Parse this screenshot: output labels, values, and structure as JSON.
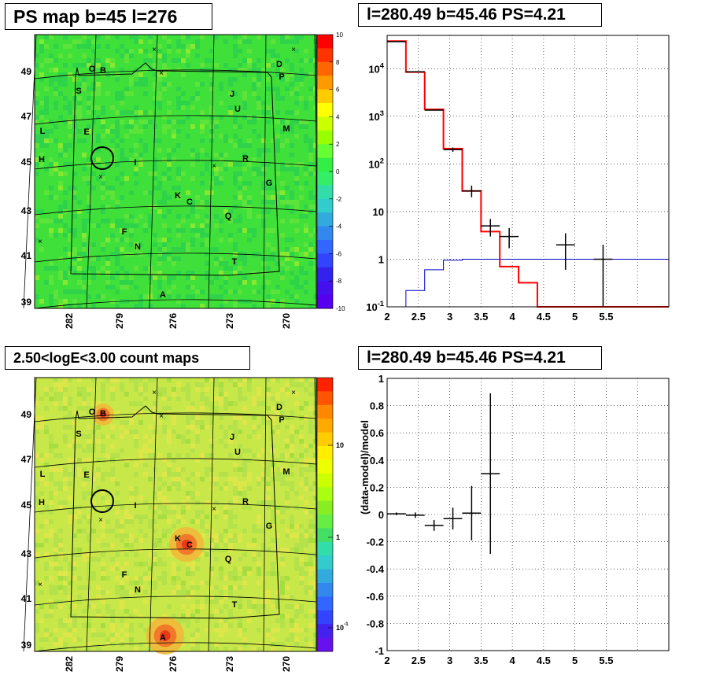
{
  "titles": {
    "ps_map": "PS map b=45 l=276",
    "spectrum": "l=280.49 b=45.46 PS=4.21",
    "count_map": "2.50<logE<3.00 count maps",
    "residual": "l=280.49 b=45.46 PS=4.21"
  },
  "colors": {
    "model_line": "#ff0000",
    "background_line": "#0000cc",
    "data": "#000000",
    "ps_map_bg": "#3fe03a",
    "count_map_bg": "#c8e84a"
  },
  "chart_data": [
    {
      "type": "heatmap",
      "title": "PS map b=45 l=276",
      "x_tick_labels": [
        "282",
        "279",
        "276",
        "273",
        "270"
      ],
      "y_tick_labels": [
        "49",
        "47",
        "45",
        "43",
        "41",
        "39"
      ],
      "colorbar": {
        "min": -10,
        "max": 10,
        "tick_labels": [
          "10",
          "8",
          "6",
          "4",
          "2",
          "0",
          "-2",
          "-4",
          "-6",
          "-8",
          "-10"
        ]
      },
      "source_labels": [
        "A",
        "B",
        "C",
        "D",
        "E",
        "F",
        "G",
        "H",
        "I",
        "J",
        "K",
        "L",
        "M",
        "N",
        "O",
        "P",
        "Q",
        "R",
        "S",
        "T",
        "U"
      ]
    },
    {
      "type": "line",
      "title": "l=280.49 b=45.46 PS=4.21",
      "x_tick_labels": [
        "2",
        "2.5",
        "3",
        "3.5",
        "4",
        "4.5",
        "5",
        "5.5"
      ],
      "xlim": [
        2,
        6.5
      ],
      "ylog": true,
      "ylim": [
        0.1,
        50000
      ],
      "y_tick_labels": [
        "10^4",
        "10^3",
        "10^2",
        "10",
        "1",
        "10^-1"
      ],
      "series": [
        {
          "role": "model",
          "bin_edges": [
            2.0,
            2.3,
            2.6,
            2.9,
            3.2,
            3.5,
            3.8,
            4.1,
            4.4,
            6.5
          ],
          "values": [
            38000,
            8500,
            1400,
            210,
            27,
            3.8,
            0.7,
            0.32,
            0.1
          ]
        },
        {
          "role": "background",
          "bin_edges": [
            2.0,
            2.3,
            2.6,
            2.9,
            3.2,
            3.5,
            3.8,
            4.1,
            4.4,
            6.5
          ],
          "values": [
            0.05,
            0.22,
            0.6,
            0.95,
            1.0,
            1.0,
            1.0,
            1.0,
            1.0
          ]
        },
        {
          "role": "data",
          "points": [
            {
              "x": 2.15,
              "xerr": 0.15,
              "y": 37000
            },
            {
              "x": 2.45,
              "xerr": 0.15,
              "y": 8600
            },
            {
              "x": 2.75,
              "xerr": 0.15,
              "y": 1350
            },
            {
              "x": 3.05,
              "xerr": 0.15,
              "y": 200,
              "ylo": 180,
              "yhi": 220
            },
            {
              "x": 3.35,
              "xerr": 0.15,
              "y": 27,
              "ylo": 20,
              "yhi": 35
            },
            {
              "x": 3.65,
              "xerr": 0.15,
              "y": 5,
              "ylo": 3,
              "yhi": 7
            },
            {
              "x": 3.95,
              "xerr": 0.15,
              "y": 3,
              "ylo": 1.7,
              "yhi": 4.5
            },
            {
              "x": 4.85,
              "xerr": 0.15,
              "y": 2,
              "ylo": 0.6,
              "yhi": 3.5
            },
            {
              "x": 5.45,
              "xerr": 0.15,
              "y": 1,
              "ylo": 0.1,
              "yhi": 2
            }
          ]
        }
      ]
    },
    {
      "type": "heatmap",
      "title": "2.50<logE<3.00 count maps",
      "x_tick_labels": [
        "282",
        "279",
        "276",
        "273",
        "270"
      ],
      "y_tick_labels": [
        "49",
        "47",
        "45",
        "43",
        "41",
        "39"
      ],
      "colorbar": {
        "log": true,
        "tick_labels": [
          "10",
          "1",
          "10^-1"
        ]
      },
      "source_labels": [
        "A",
        "B",
        "C",
        "D",
        "E",
        "F",
        "G",
        "H",
        "I",
        "J",
        "K",
        "L",
        "M",
        "N",
        "O",
        "P",
        "Q",
        "R",
        "S",
        "T",
        "U"
      ]
    },
    {
      "type": "scatter",
      "title": "l=280.49 b=45.46 PS=4.21",
      "ylabel": "(data-model)/model",
      "x_tick_labels": [
        "2",
        "2.5",
        "3",
        "3.5",
        "4",
        "4.5",
        "5",
        "5.5"
      ],
      "xlim": [
        2,
        6.5
      ],
      "ylim": [
        -1,
        1
      ],
      "y_tick_labels": [
        "1",
        "0.8",
        "0.6",
        "0.4",
        "0.2",
        "0",
        "-0.2",
        "-0.4",
        "-0.6",
        "-0.8",
        "-1"
      ],
      "points": [
        {
          "x": 2.15,
          "xerr": 0.15,
          "y": 0.005,
          "yerr": 0.01
        },
        {
          "x": 2.45,
          "xerr": 0.15,
          "y": -0.005,
          "yerr": 0.02
        },
        {
          "x": 2.75,
          "xerr": 0.15,
          "y": -0.08,
          "yerr": 0.04
        },
        {
          "x": 3.05,
          "xerr": 0.15,
          "y": -0.03,
          "yerr": 0.08
        },
        {
          "x": 3.35,
          "xerr": 0.15,
          "y": 0.01,
          "yerr": 0.2
        },
        {
          "x": 3.65,
          "xerr": 0.15,
          "y": 0.3,
          "yerr": 0.59
        }
      ]
    }
  ]
}
